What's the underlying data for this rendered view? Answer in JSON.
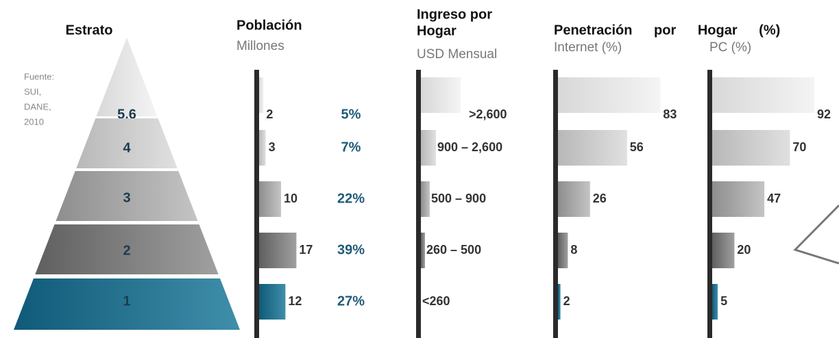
{
  "estrato": {
    "title": "Estrato",
    "source": [
      "Fuente:",
      "SUI,",
      "DANE,",
      "2010"
    ],
    "levels": [
      "5.6",
      "4",
      "3",
      "2",
      "1"
    ]
  },
  "poblacion": {
    "title": "Población",
    "subtitle": "Millones",
    "values": [
      2,
      3,
      10,
      17,
      12
    ],
    "shares": [
      "5%",
      "7%",
      "22%",
      "39%",
      "27%"
    ]
  },
  "ingreso": {
    "title": [
      "Ingreso por",
      "Hogar"
    ],
    "subtitle": "USD Mensual",
    "ranges": [
      ">2,600",
      "900 – 2,600",
      "500 – 900",
      "260 – 500",
      "<260"
    ]
  },
  "penetracion": {
    "title": "Penetración por Hogar (%)",
    "internet": {
      "subtitle": "Internet (%)",
      "values": [
        83,
        56,
        26,
        8,
        2
      ]
    },
    "pc": {
      "subtitle": "PC (%)",
      "values": [
        92,
        70,
        47,
        20,
        5
      ]
    }
  }
}
